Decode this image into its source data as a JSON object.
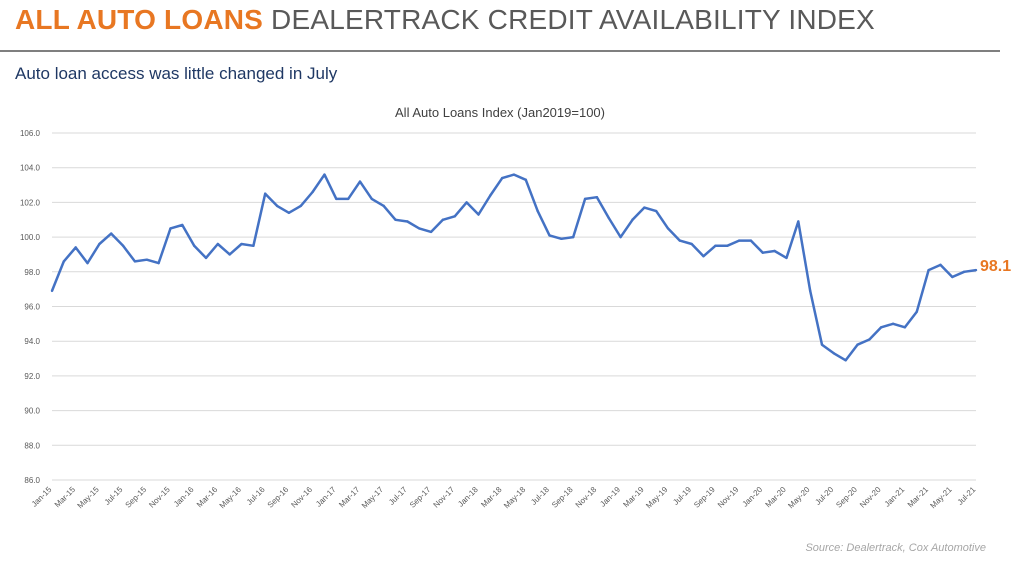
{
  "header": {
    "accent_title": "ALL AUTO LOANS",
    "title_rest": "DEALERTRACK CREDIT AVAILABILITY INDEX",
    "subtitle": "Auto loan access was little changed in July",
    "source": "Source: Dealertrack, Cox Automotive"
  },
  "colors": {
    "accent": "#e87722",
    "line": "#4472c4",
    "subtitle": "#1f3864",
    "grid": "#d9d9d9"
  },
  "chart_data": {
    "type": "line",
    "title": "All Auto Loans Index (Jan2019=100)",
    "ylim": [
      86,
      106
    ],
    "yticks": [
      "86.0",
      "88.0",
      "90.0",
      "92.0",
      "94.0",
      "96.0",
      "98.0",
      "100.0",
      "102.0",
      "104.0",
      "106.0"
    ],
    "grid": true,
    "x_labels": [
      "Jan-15",
      "Mar-15",
      "May-15",
      "Jul-15",
      "Sep-15",
      "Nov-15",
      "Jan-16",
      "Mar-16",
      "May-16",
      "Jul-16",
      "Sep-16",
      "Nov-16",
      "Jan-17",
      "Mar-17",
      "May-17",
      "Jul-17",
      "Sep-17",
      "Nov-17",
      "Jan-18",
      "Mar-18",
      "May-18",
      "Jul-18",
      "Sep-18",
      "Nov-18",
      "Jan-19",
      "Mar-19",
      "May-19",
      "Jul-19",
      "Sep-19",
      "Nov-19",
      "Jan-20",
      "Mar-20",
      "May-20",
      "Jul-20",
      "Sep-20",
      "Nov-20",
      "Jan-21",
      "Mar-21",
      "May-21",
      "Jul-21"
    ],
    "series": [
      {
        "values": [
          96.9,
          98.6,
          99.4,
          98.5,
          99.6,
          100.2,
          99.5,
          98.6,
          98.7,
          98.5,
          100.5,
          100.7,
          99.5,
          98.8,
          99.6,
          99.0,
          99.6,
          99.5,
          102.5,
          101.8,
          101.4,
          101.8,
          102.6,
          103.6,
          102.2,
          102.2,
          103.2,
          102.2,
          101.8,
          101.0,
          100.9,
          100.5,
          100.3,
          101.0,
          101.2,
          102.0,
          101.3,
          102.4,
          103.4,
          103.6,
          103.3,
          101.5,
          100.1,
          99.9,
          100.0,
          102.2,
          102.3,
          101.1,
          100.0,
          101.0,
          101.7,
          101.5,
          100.5,
          99.8,
          99.6,
          98.9,
          99.5,
          99.5,
          99.8,
          99.8,
          99.1,
          99.2,
          98.8,
          100.9,
          96.9,
          93.8,
          93.3,
          92.9,
          93.8,
          94.1,
          94.8,
          95.0,
          94.8,
          95.7,
          98.1,
          98.4,
          97.7,
          98.0,
          98.1
        ]
      }
    ],
    "end_label": "98.1"
  }
}
